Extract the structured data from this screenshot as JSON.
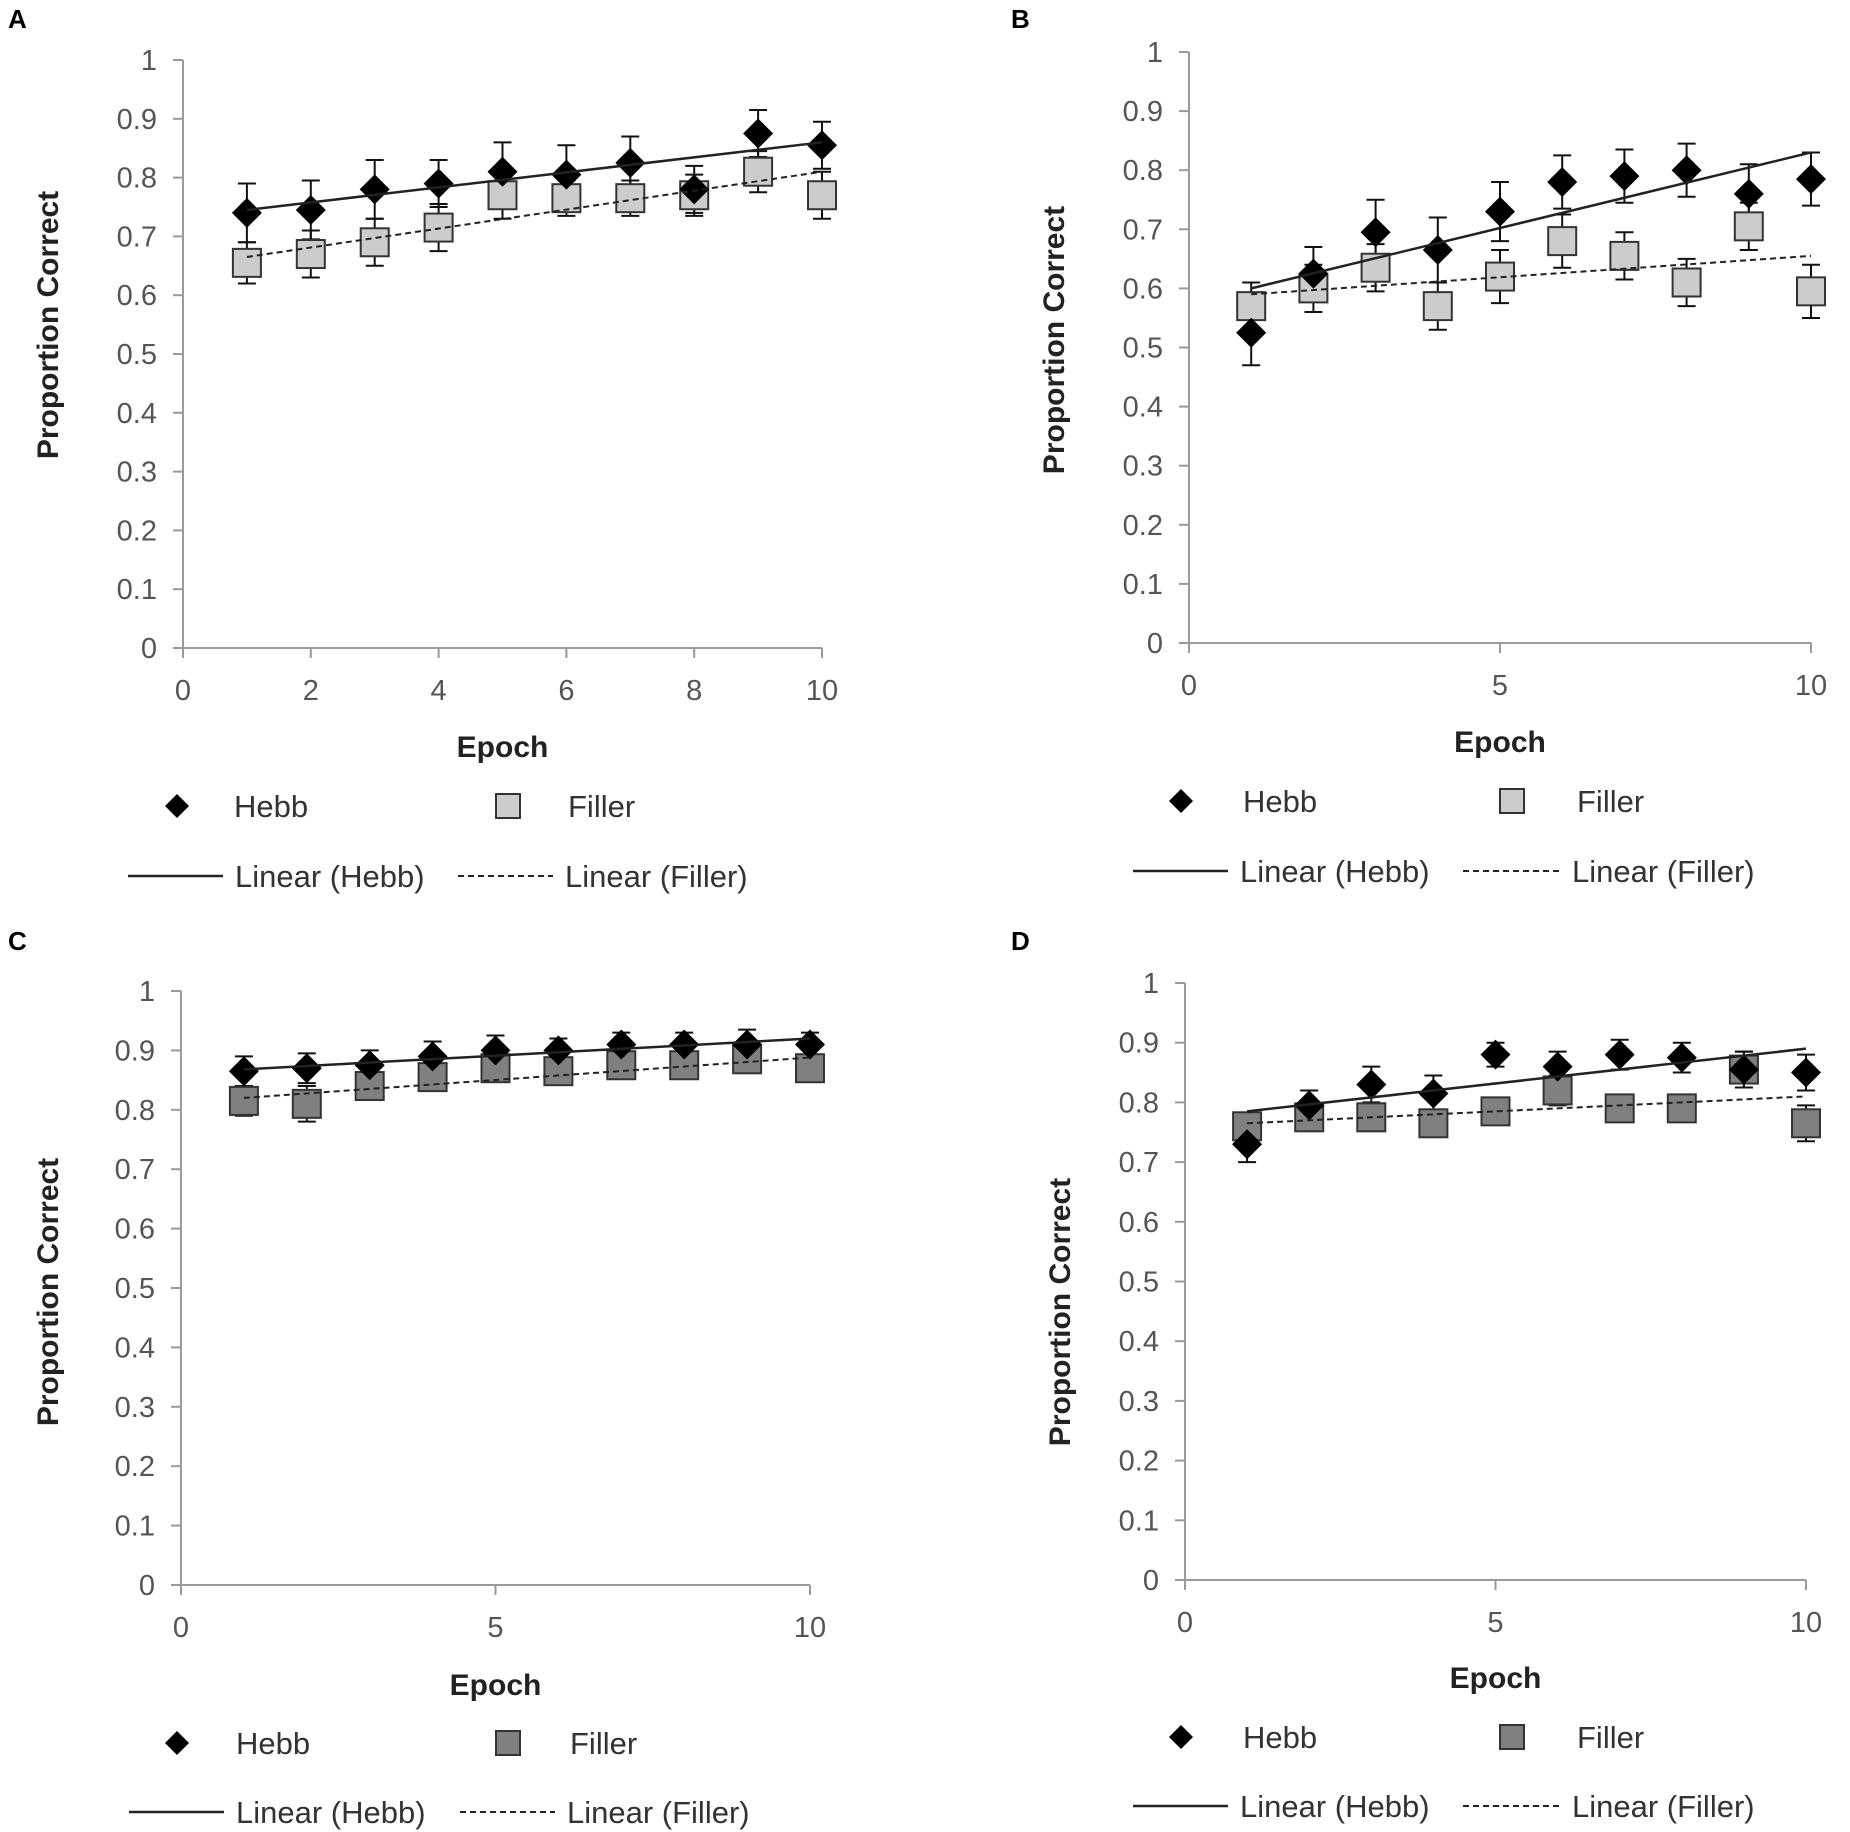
{
  "chart_data": [
    {
      "panel": "A",
      "type": "scatter",
      "xlabel": "Epoch",
      "ylabel": "Proportion Correct",
      "xlim": [
        0,
        10
      ],
      "ylim": [
        0,
        1
      ],
      "xticks": [
        "0",
        "2",
        "4",
        "6",
        "8",
        "10"
      ],
      "yticks": [
        "0",
        "0.1",
        "0.2",
        "0.3",
        "0.4",
        "0.5",
        "0.6",
        "0.7",
        "0.8",
        "0.9",
        "1"
      ],
      "filler_color": "#cccccc",
      "series": [
        {
          "name": "Hebb",
          "marker": "diamond",
          "x": [
            1,
            2,
            3,
            4,
            5,
            6,
            7,
            8,
            9,
            10
          ],
          "values": [
            0.74,
            0.745,
            0.78,
            0.79,
            0.81,
            0.805,
            0.825,
            0.78,
            0.875,
            0.855
          ],
          "errors": [
            0.05,
            0.05,
            0.05,
            0.04,
            0.05,
            0.05,
            0.045,
            0.04,
            0.04,
            0.04
          ]
        },
        {
          "name": "Filler",
          "marker": "square",
          "x": [
            1,
            2,
            3,
            4,
            5,
            6,
            7,
            8,
            9,
            10
          ],
          "values": [
            0.655,
            0.67,
            0.69,
            0.715,
            0.77,
            0.765,
            0.765,
            0.77,
            0.81,
            0.77
          ],
          "errors": [
            0.035,
            0.04,
            0.04,
            0.04,
            0.04,
            0.03,
            0.03,
            0.035,
            0.035,
            0.04
          ]
        },
        {
          "name": "Linear (Hebb)",
          "line": "solid",
          "endpoints": [
            [
              1,
              0.745
            ],
            [
              10,
              0.86
            ]
          ]
        },
        {
          "name": "Linear (Filler)",
          "line": "dashed",
          "endpoints": [
            [
              1,
              0.665
            ],
            [
              10,
              0.81
            ]
          ]
        }
      ],
      "legend": [
        "Hebb",
        "Filler",
        "Linear (Hebb)",
        "Linear (Filler)"
      ]
    },
    {
      "panel": "B",
      "type": "scatter",
      "xlabel": "Epoch",
      "ylabel": "Proportion Correct",
      "xlim": [
        0,
        10
      ],
      "ylim": [
        0,
        1
      ],
      "xticks": [
        "0",
        "5",
        "10"
      ],
      "yticks": [
        "0",
        "0.1",
        "0.2",
        "0.3",
        "0.4",
        "0.5",
        "0.6",
        "0.7",
        "0.8",
        "0.9",
        "1"
      ],
      "filler_color": "#cccccc",
      "series": [
        {
          "name": "Hebb",
          "marker": "diamond",
          "x": [
            1,
            2,
            3,
            4,
            5,
            6,
            7,
            8,
            9,
            10
          ],
          "values": [
            0.525,
            0.625,
            0.695,
            0.665,
            0.73,
            0.78,
            0.79,
            0.8,
            0.76,
            0.785
          ],
          "errors": [
            0.055,
            0.045,
            0.055,
            0.055,
            0.05,
            0.045,
            0.045,
            0.045,
            0.05,
            0.045
          ]
        },
        {
          "name": "Filler",
          "marker": "square",
          "x": [
            1,
            2,
            3,
            4,
            5,
            6,
            7,
            8,
            9,
            10
          ],
          "values": [
            0.57,
            0.6,
            0.635,
            0.57,
            0.62,
            0.68,
            0.655,
            0.61,
            0.705,
            0.595
          ],
          "errors": [
            0.04,
            0.04,
            0.04,
            0.04,
            0.045,
            0.045,
            0.04,
            0.04,
            0.04,
            0.045
          ]
        },
        {
          "name": "Linear (Hebb)",
          "line": "solid",
          "endpoints": [
            [
              1,
              0.6
            ],
            [
              10,
              0.83
            ]
          ]
        },
        {
          "name": "Linear (Filler)",
          "line": "dashed",
          "endpoints": [
            [
              1,
              0.59
            ],
            [
              10,
              0.655
            ]
          ]
        }
      ],
      "legend": [
        "Hebb",
        "Filler",
        "Linear (Hebb)",
        "Linear (Filler)"
      ]
    },
    {
      "panel": "C",
      "type": "scatter",
      "xlabel": "Epoch",
      "ylabel": "Proportion Correct",
      "xlim": [
        0,
        10
      ],
      "ylim": [
        0,
        1
      ],
      "xticks": [
        "0",
        "5",
        "10"
      ],
      "yticks": [
        "0",
        "0.1",
        "0.2",
        "0.3",
        "0.4",
        "0.5",
        "0.6",
        "0.7",
        "0.8",
        "0.9",
        "1"
      ],
      "filler_color": "#808080",
      "series": [
        {
          "name": "Hebb",
          "marker": "diamond",
          "x": [
            1,
            2,
            3,
            4,
            5,
            6,
            7,
            8,
            9,
            10
          ],
          "values": [
            0.865,
            0.87,
            0.875,
            0.89,
            0.9,
            0.9,
            0.91,
            0.91,
            0.91,
            0.91
          ],
          "errors": [
            0.025,
            0.025,
            0.025,
            0.025,
            0.025,
            0.02,
            0.02,
            0.02,
            0.025,
            0.02
          ]
        },
        {
          "name": "Filler",
          "marker": "square",
          "x": [
            1,
            2,
            3,
            4,
            5,
            6,
            7,
            8,
            9,
            10
          ],
          "values": [
            0.815,
            0.81,
            0.84,
            0.855,
            0.87,
            0.865,
            0.875,
            0.875,
            0.885,
            0.87
          ],
          "errors": [
            0.025,
            0.03,
            0.02,
            0.02,
            0.02,
            0.02,
            0.02,
            0.02,
            0.02,
            0.02
          ]
        },
        {
          "name": "Linear (Hebb)",
          "line": "solid",
          "endpoints": [
            [
              1,
              0.868
            ],
            [
              10,
              0.92
            ]
          ]
        },
        {
          "name": "Linear (Filler)",
          "line": "dashed",
          "endpoints": [
            [
              1,
              0.82
            ],
            [
              10,
              0.888
            ]
          ]
        }
      ],
      "legend": [
        "Hebb",
        "Filler",
        "Linear (Hebb)",
        "Linear (Filler)"
      ]
    },
    {
      "panel": "D",
      "type": "scatter",
      "xlabel": "Epoch",
      "ylabel": "Proportion Correct",
      "xlim": [
        0,
        10
      ],
      "ylim": [
        0,
        1
      ],
      "xticks": [
        "0",
        "5",
        "10"
      ],
      "yticks": [
        "0",
        "0.1",
        "0.2",
        "0.3",
        "0.4",
        "0.5",
        "0.6",
        "0.7",
        "0.8",
        "0.9",
        "1"
      ],
      "filler_color": "#808080",
      "series": [
        {
          "name": "Hebb",
          "marker": "diamond",
          "x": [
            1,
            2,
            3,
            4,
            5,
            6,
            7,
            8,
            9,
            10
          ],
          "values": [
            0.73,
            0.795,
            0.83,
            0.815,
            0.88,
            0.86,
            0.88,
            0.875,
            0.855,
            0.85
          ],
          "errors": [
            0.03,
            0.025,
            0.03,
            0.03,
            0.02,
            0.025,
            0.025,
            0.025,
            0.03,
            0.03
          ]
        },
        {
          "name": "Filler",
          "marker": "square",
          "x": [
            1,
            2,
            3,
            4,
            5,
            6,
            7,
            8,
            9,
            10
          ],
          "values": [
            0.76,
            0.775,
            0.775,
            0.765,
            0.785,
            0.82,
            0.79,
            0.79,
            0.855,
            0.765
          ],
          "errors": [
            0.02,
            0.02,
            0.02,
            0.02,
            0.02,
            0.025,
            0.02,
            0.015,
            0.03,
            0.03
          ]
        },
        {
          "name": "Linear (Hebb)",
          "line": "solid",
          "endpoints": [
            [
              1,
              0.785
            ],
            [
              10,
              0.89
            ]
          ]
        },
        {
          "name": "Linear (Filler)",
          "line": "dashed",
          "endpoints": [
            [
              1,
              0.765
            ],
            [
              10,
              0.81
            ]
          ]
        }
      ],
      "legend": [
        "Hebb",
        "Filler",
        "Linear (Hebb)",
        "Linear (Filler)"
      ]
    }
  ]
}
